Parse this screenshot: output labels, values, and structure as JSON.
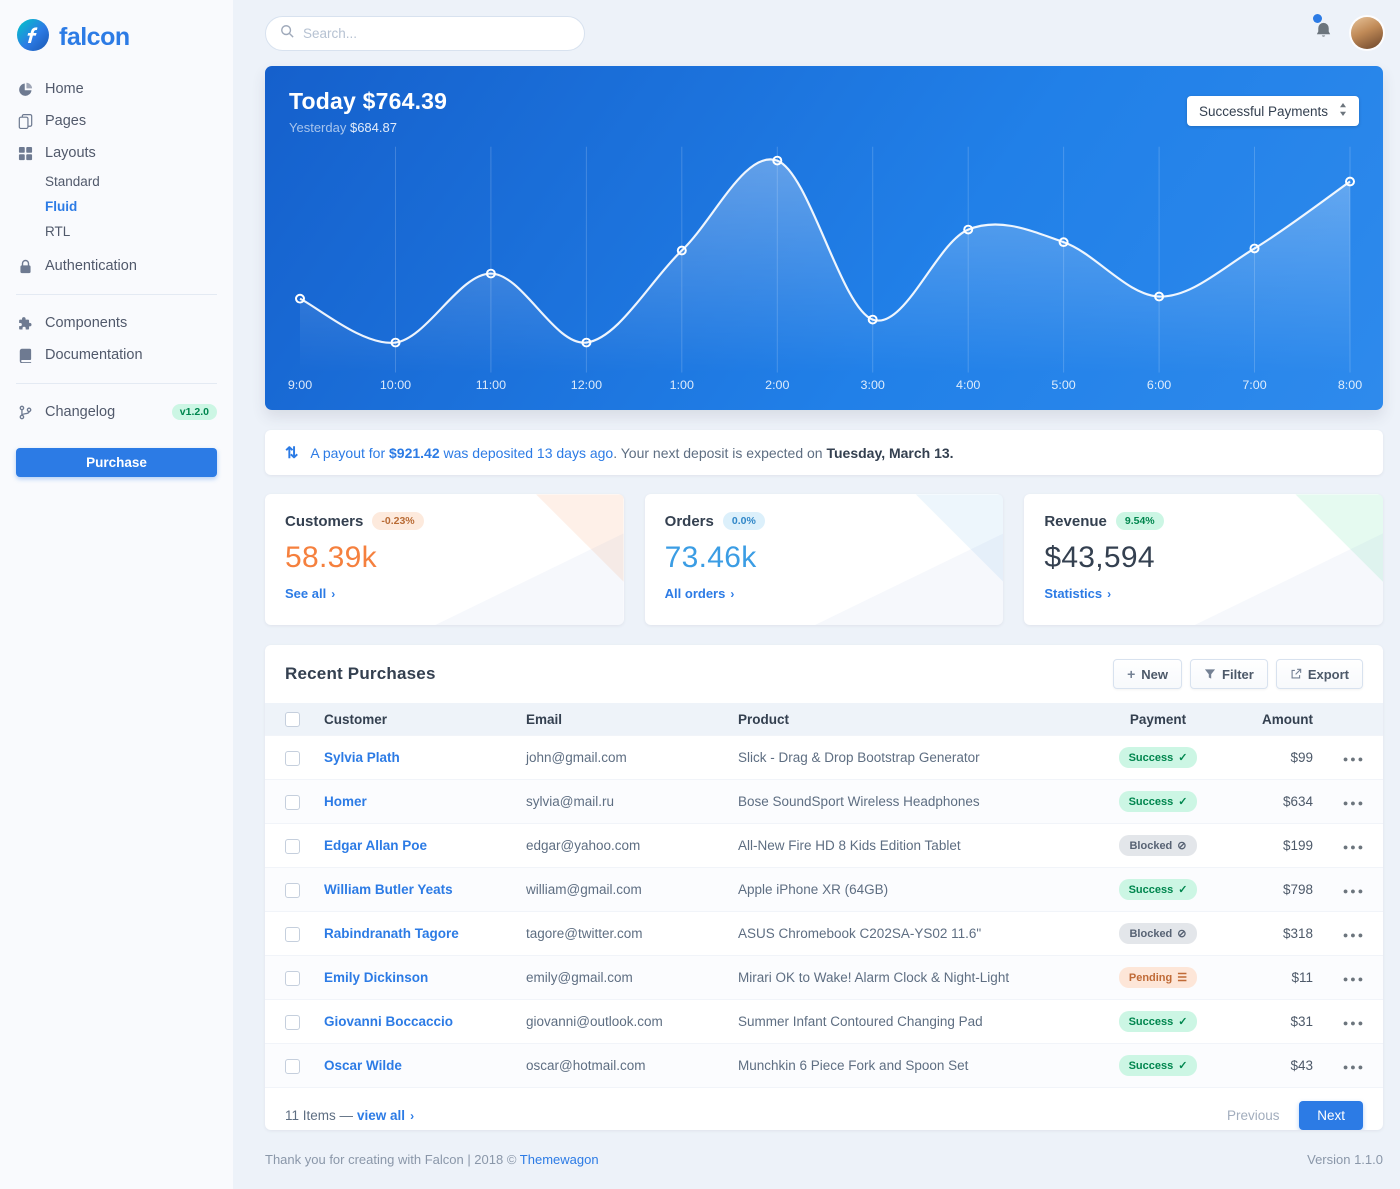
{
  "brand": {
    "name": "falcon"
  },
  "topbar": {
    "search_placeholder": "Search..."
  },
  "sidebar": {
    "items": [
      {
        "label": "Home",
        "icon": "chart-pie-icon"
      },
      {
        "label": "Pages",
        "icon": "copy-icon"
      },
      {
        "label": "Layouts",
        "icon": "layout-icon",
        "children": [
          {
            "label": "Standard",
            "active": false
          },
          {
            "label": "Fluid",
            "active": true
          },
          {
            "label": "RTL",
            "active": false
          }
        ]
      },
      {
        "label": "Authentication",
        "icon": "lock-icon"
      },
      {
        "label": "Components",
        "icon": "puzzle-icon",
        "group": 2
      },
      {
        "label": "Documentation",
        "icon": "book-icon",
        "group": 2
      },
      {
        "label": "Changelog",
        "icon": "branch-icon",
        "badge": "v1.2.0",
        "group": 3
      }
    ],
    "purchase_label": "Purchase"
  },
  "chart_card": {
    "title_label": "Today",
    "title_value": "$764.39",
    "subtitle_label": "Yesterday",
    "subtitle_value": "$684.87",
    "select_value": "Successful Payments"
  },
  "chart_data": {
    "type": "line",
    "x": [
      "9:00",
      "10:00",
      "11:00",
      "12:00",
      "1:00",
      "2:00",
      "3:00",
      "4:00",
      "5:00",
      "6:00",
      "7:00",
      "8:00"
    ],
    "series": [
      {
        "name": "Successful Payments",
        "values": [
          33,
          12,
          45,
          12,
          56,
          99,
          23,
          66,
          60,
          34,
          57,
          89
        ]
      }
    ],
    "ylim": [
      0,
      100
    ],
    "grid": "vertical",
    "line_color": "#ffffff",
    "legend_position": "none"
  },
  "payout_notice": {
    "link_prefix": "A payout for ",
    "amount": "$921.42",
    "link_suffix": " was deposited 13 days ago",
    "mid_text": ". Your next deposit is expected on ",
    "strong_text": "Tuesday, March 13."
  },
  "stats": [
    {
      "title": "Customers",
      "badge": "-0.23%",
      "badge_type": "warning",
      "value": "58.39k",
      "value_color": "#f5803e",
      "accent": "#f5803e",
      "link": "See all"
    },
    {
      "title": "Orders",
      "badge": "0.0%",
      "badge_type": "info",
      "value": "73.46k",
      "value_color": "#3b9de4",
      "accent": "#6fb4ea",
      "link": "All orders"
    },
    {
      "title": "Revenue",
      "badge": "9.54%",
      "badge_type": "success",
      "value": "$43,594",
      "value_color": "#344050",
      "accent": "#2dd286",
      "link": "Statistics"
    }
  ],
  "purchases": {
    "title": "Recent Purchases",
    "buttons": [
      {
        "label": "New",
        "icon": "plus-icon"
      },
      {
        "label": "Filter",
        "icon": "filter-icon"
      },
      {
        "label": "Export",
        "icon": "export-icon"
      }
    ],
    "columns": [
      "Customer",
      "Email",
      "Product",
      "Payment",
      "Amount"
    ],
    "rows": [
      {
        "customer": "Sylvia Plath",
        "email": "john@gmail.com",
        "product": "Slick - Drag & Drop Bootstrap Generator",
        "payment": "Success",
        "payment_type": "success",
        "amount": "$99"
      },
      {
        "customer": "Homer",
        "email": "sylvia@mail.ru",
        "product": "Bose SoundSport Wireless Headphones",
        "payment": "Success",
        "payment_type": "success",
        "amount": "$634"
      },
      {
        "customer": "Edgar Allan Poe",
        "email": "edgar@yahoo.com",
        "product": "All-New Fire HD 8 Kids Edition Tablet",
        "payment": "Blocked",
        "payment_type": "blocked",
        "amount": "$199"
      },
      {
        "customer": "William Butler Yeats",
        "email": "william@gmail.com",
        "product": "Apple iPhone XR (64GB)",
        "payment": "Success",
        "payment_type": "success",
        "amount": "$798"
      },
      {
        "customer": "Rabindranath Tagore",
        "email": "tagore@twitter.com",
        "product": "ASUS Chromebook C202SA-YS02 11.6\"",
        "payment": "Blocked",
        "payment_type": "blocked",
        "amount": "$318"
      },
      {
        "customer": "Emily Dickinson",
        "email": "emily@gmail.com",
        "product": "Mirari OK to Wake! Alarm Clock & Night-Light",
        "payment": "Pending",
        "payment_type": "pending",
        "amount": "$11"
      },
      {
        "customer": "Giovanni Boccaccio",
        "email": "giovanni@outlook.com",
        "product": "Summer Infant Contoured Changing Pad",
        "payment": "Success",
        "payment_type": "success",
        "amount": "$31"
      },
      {
        "customer": "Oscar Wilde",
        "email": "oscar@hotmail.com",
        "product": "Munchkin 6 Piece Fork and Spoon Set",
        "payment": "Success",
        "payment_type": "success",
        "amount": "$43"
      }
    ],
    "footer": {
      "items_text": "11 Items —",
      "view_all": "view all",
      "prev_label": "Previous",
      "next_label": "Next"
    }
  },
  "footer": {
    "left": "Thank you for creating with Falcon | 2018 © ",
    "link": "Themewagon",
    "version": "Version 1.1.0"
  },
  "colors": {
    "primary": "#2c7be5",
    "success": "#00d27a",
    "warning": "#f5803e",
    "chart_gradient_start": "#1560cc",
    "chart_gradient_end": "#2e8aec"
  }
}
